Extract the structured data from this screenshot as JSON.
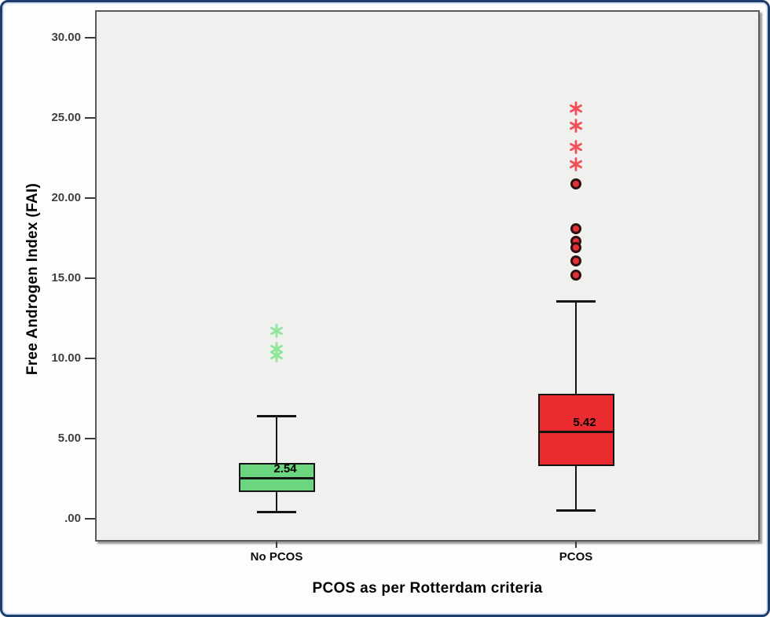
{
  "figure": {
    "frame_border_color": "#1d3c6e",
    "plot_background_color": "#f0f0ee"
  },
  "chart_data": {
    "type": "boxplot",
    "title": "",
    "xlabel": "PCOS as per Rotterdam criteria",
    "ylabel": "Free Androgen Index (FAI)",
    "ylim": [
      0,
      30
    ],
    "grid": false,
    "legend": false,
    "categories": [
      "No PCOS",
      "PCOS"
    ],
    "y_ticks": [
      {
        "value": 30,
        "label": "30.00"
      },
      {
        "value": 25,
        "label": "25.00"
      },
      {
        "value": 20,
        "label": "20.00"
      },
      {
        "value": 15,
        "label": "15.00"
      },
      {
        "value": 10,
        "label": "10.00"
      },
      {
        "value": 5,
        "label": "5.00"
      },
      {
        "value": 0,
        "label": ".00"
      }
    ],
    "series": [
      {
        "name": "No PCOS",
        "box_color": "#6bd57f",
        "outlier_color": "#8ee69b",
        "mild_color": "#6bd57f",
        "whisker_low": 0.4,
        "q1": 1.65,
        "median": 2.54,
        "q3": 3.5,
        "whisker_high": 6.4,
        "median_label": "2.54",
        "outliers_extreme": [
          11.7,
          10.6,
          10.2
        ],
        "outliers_mild": []
      },
      {
        "name": "PCOS",
        "box_color": "#ea2c31",
        "outlier_color": "#f25059",
        "mild_color": "#e23136",
        "whisker_low": 0.5,
        "q1": 3.3,
        "median": 5.42,
        "q3": 7.8,
        "whisker_high": 13.6,
        "median_label": "5.42",
        "outliers_extreme": [
          25.6,
          24.5,
          23.2,
          22.1
        ],
        "outliers_mild": [
          20.9,
          18.1,
          17.3,
          16.9,
          16.1,
          15.2
        ]
      }
    ]
  }
}
